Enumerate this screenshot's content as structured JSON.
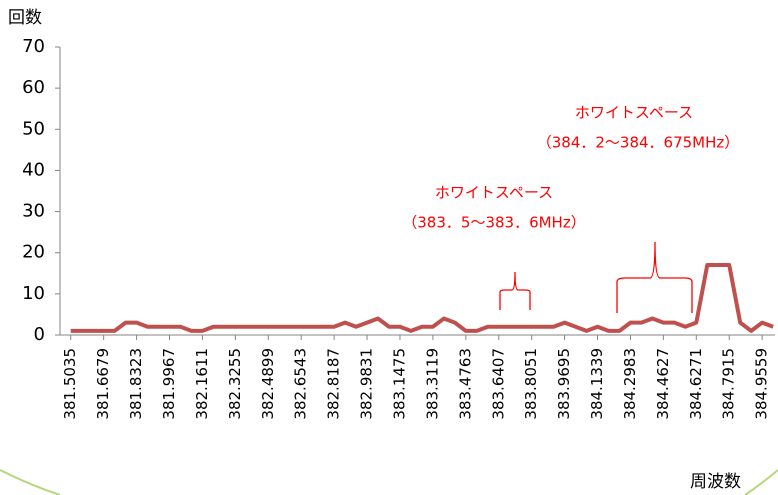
{
  "chart_data": {
    "type": "line",
    "ylabel": "回数",
    "xlabel": "周波数",
    "xlim": [
      381.45,
      385.02
    ],
    "ylim": [
      0,
      70
    ],
    "yticks": [
      0,
      10,
      20,
      30,
      40,
      50,
      60,
      70
    ],
    "xticks": [
      381.5035,
      381.6679,
      381.8323,
      381.9967,
      382.1611,
      382.3255,
      382.4899,
      382.6543,
      382.8187,
      382.9831,
      383.1475,
      383.3119,
      383.4763,
      383.6407,
      383.8051,
      383.9695,
      384.1339,
      384.2983,
      384.4627,
      384.6271,
      384.7915,
      384.9559
    ],
    "grid": false,
    "x": [
      381.5035,
      381.5583,
      381.6131,
      381.6679,
      381.7227,
      381.7775,
      381.8323,
      381.8871,
      381.9419,
      381.9967,
      382.0515,
      382.1063,
      382.1611,
      382.2159,
      382.2707,
      382.3255,
      382.3803,
      382.4351,
      382.4899,
      382.5447,
      382.5995,
      382.6543,
      382.7091,
      382.7639,
      382.8187,
      382.8735,
      382.9283,
      382.9831,
      383.0379,
      383.0927,
      383.1475,
      383.2023,
      383.2571,
      383.3119,
      383.3667,
      383.4215,
      383.4763,
      383.5311,
      383.5859,
      383.6407,
      383.6955,
      383.7503,
      383.8051,
      383.8599,
      383.9147,
      383.9695,
      384.0243,
      384.0791,
      384.1339,
      384.1887,
      384.2435,
      384.2983,
      384.3531,
      384.4079,
      384.4627,
      384.5175,
      384.5723,
      384.6271,
      384.6819,
      384.7367,
      384.7915,
      384.8463,
      384.9011,
      384.9559,
      385.0107
    ],
    "series": [
      {
        "color": "#c0504d",
        "values": [
          1,
          1,
          1,
          1,
          1,
          3,
          3,
          2,
          2,
          2,
          2,
          1,
          1,
          2,
          2,
          2,
          2,
          2,
          2,
          2,
          2,
          2,
          2,
          2,
          2,
          3,
          2,
          3,
          4,
          2,
          2,
          1,
          2,
          2,
          4,
          3,
          1,
          1,
          2,
          2,
          2,
          2,
          2,
          2,
          2,
          3,
          2,
          1,
          2,
          1,
          1,
          3,
          3,
          4,
          3,
          3,
          2,
          3,
          17,
          17,
          17,
          3,
          1,
          3,
          2
        ]
      }
    ],
    "annotations": [
      {
        "lines": [
          "ホワイトスペース",
          "（384．2～384．675MHz）"
        ]
      },
      {
        "lines": [
          "ホワイトスペース",
          "（383．5～383．6MHz）"
        ]
      }
    ]
  }
}
